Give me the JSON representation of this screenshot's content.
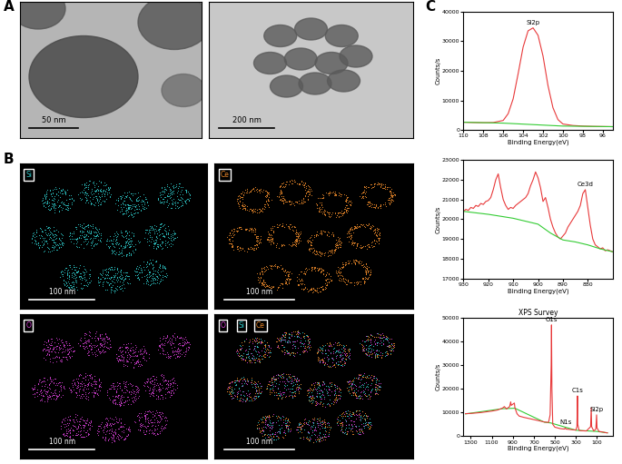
{
  "panels": {
    "A": {
      "label": "A",
      "scale_bars": [
        "50 nm",
        "200 nm"
      ]
    },
    "B": {
      "label": "B",
      "maps": [
        {
          "element": "Si",
          "color": "#2ec4c4"
        },
        {
          "element": "Ce",
          "color": "#e8862a"
        },
        {
          "element": "O",
          "color": "#d13fd1"
        }
      ],
      "overlay": [
        "O",
        "Si",
        "Ce"
      ],
      "scale_bar": "100 nm"
    },
    "C": {
      "label": "C"
    }
  },
  "chart_data": [
    {
      "type": "line",
      "x_label": "Binding Energy(eV)",
      "y_label": "Counts/s",
      "xlim": [
        110,
        95
      ],
      "xticks": [
        110,
        108,
        106,
        104,
        102,
        100,
        98,
        96
      ],
      "ylim": [
        0,
        40000
      ],
      "yticks": [
        0,
        10000,
        20000,
        30000,
        40000
      ],
      "grid": false,
      "series": [
        {
          "color": "#e8393a",
          "x": [
            110,
            109,
            108,
            107,
            106,
            105.5,
            105,
            104.5,
            104,
            103.5,
            103,
            102.5,
            102,
            101.5,
            101,
            100.5,
            100,
            99,
            98,
            97,
            96,
            95
          ],
          "values": [
            2600,
            2500,
            2450,
            2500,
            3200,
            5500,
            10500,
            19000,
            28000,
            33500,
            34500,
            32000,
            25000,
            15000,
            7500,
            3500,
            2000,
            1500,
            1300,
            1200,
            1150,
            1100
          ]
        },
        {
          "color": "#33cc33",
          "x": [
            110,
            106,
            100,
            95
          ],
          "values": [
            2600,
            2300,
            1300,
            1100
          ]
        }
      ],
      "annotations": [
        {
          "text": "Si2p",
          "x": 103,
          "y": 34500
        }
      ]
    },
    {
      "type": "line",
      "x_label": "Binding Energy(eV)",
      "y_label": "Counts/s",
      "xlim": [
        930,
        870
      ],
      "xticks": [
        930,
        920,
        910,
        900,
        890,
        880
      ],
      "ylim": [
        17000,
        23000
      ],
      "yticks": [
        17000,
        18000,
        19000,
        20000,
        21000,
        22000,
        23000
      ],
      "grid": false,
      "series": [
        {
          "color": "#e8393a",
          "x": [
            930,
            929,
            928,
            927,
            926,
            925,
            924,
            923,
            922,
            921,
            920,
            919,
            918,
            917,
            916,
            915,
            914,
            913,
            912,
            911,
            910,
            909,
            908,
            907,
            906,
            905,
            904,
            903,
            902,
            901,
            900,
            899,
            898,
            897,
            896,
            895,
            894,
            893,
            892,
            891,
            890,
            889,
            888,
            887,
            886,
            885,
            884,
            883,
            882,
            881,
            880,
            879,
            878,
            877,
            876,
            875,
            874,
            873,
            872,
            871,
            870
          ],
          "values": [
            20400,
            20500,
            20450,
            20600,
            20550,
            20700,
            20650,
            20800,
            20750,
            20900,
            20950,
            21100,
            21500,
            22000,
            22300,
            21600,
            21000,
            20700,
            20500,
            20600,
            20550,
            20700,
            20800,
            20900,
            21000,
            21100,
            21300,
            21700,
            22000,
            22400,
            22100,
            21600,
            20900,
            21100,
            20600,
            20000,
            19600,
            19300,
            19100,
            19000,
            19150,
            19300,
            19600,
            19800,
            20000,
            20200,
            20400,
            20700,
            21300,
            21500,
            20600,
            19700,
            19000,
            18700,
            18600,
            18500,
            18550,
            18400,
            18450,
            18400,
            18350
          ]
        },
        {
          "color": "#33cc33",
          "x": [
            930,
            920,
            910,
            900,
            895,
            890,
            885,
            880,
            875,
            870
          ],
          "values": [
            20400,
            20250,
            20050,
            19750,
            19300,
            18950,
            18850,
            18700,
            18500,
            18350
          ]
        }
      ],
      "annotations": [
        {
          "text": "Ce3d",
          "x": 881,
          "y": 21500
        }
      ]
    },
    {
      "type": "line",
      "title": "XPS Survey",
      "x_label": "Binding Energy(eV)",
      "y_label": "Counts/s",
      "xlim": [
        1370,
        -50
      ],
      "xticks": [
        1300,
        1100,
        900,
        700,
        500,
        300,
        100
      ],
      "ylim": [
        0,
        50000
      ],
      "yticks": [
        0,
        10000,
        20000,
        30000,
        40000,
        50000
      ],
      "grid": false,
      "series": [
        {
          "color": "#33cc33",
          "x": [
            1350,
            1000,
            880,
            600,
            540,
            300,
            100,
            0
          ],
          "values": [
            9400,
            11600,
            11800,
            5900,
            5600,
            2500,
            2000,
            1400
          ]
        },
        {
          "color": "#e8393a",
          "x": [
            1350,
            1300,
            1250,
            1200,
            1150,
            1100,
            1050,
            1000,
            980,
            960,
            930,
            920,
            915,
            900,
            885,
            880,
            860,
            840,
            800,
            750,
            700,
            650,
            600,
            560,
            545,
            535,
            532,
            528,
            520,
            500,
            450,
            410,
            400,
            395,
            350,
            300,
            290,
            285,
            282,
            270,
            250,
            200,
            160,
            154,
            150,
            130,
            110,
            103,
            99,
            80,
            50,
            20,
            0
          ],
          "values": [
            9500,
            9600,
            9800,
            10000,
            10300,
            10600,
            11000,
            11800,
            12500,
            11500,
            12500,
            14500,
            13000,
            13500,
            14000,
            12000,
            9500,
            8500,
            8000,
            7500,
            7000,
            6500,
            6000,
            5800,
            9000,
            30000,
            47000,
            20000,
            5000,
            3800,
            3200,
            3000,
            3500,
            3000,
            2800,
            2600,
            4000,
            17000,
            5000,
            2500,
            2300,
            2200,
            4000,
            12000,
            4000,
            2200,
            3000,
            9000,
            3500,
            2000,
            1800,
            1500,
            1400
          ]
        }
      ],
      "annotations": [
        {
          "text": "O1s",
          "x": 532,
          "y": 47000
        },
        {
          "text": "N1s",
          "x": 400,
          "y": 3500
        },
        {
          "text": "C1s",
          "x": 285,
          "y": 17000
        },
        {
          "text": "Si2p",
          "x": 103,
          "y": 9000
        }
      ]
    }
  ]
}
